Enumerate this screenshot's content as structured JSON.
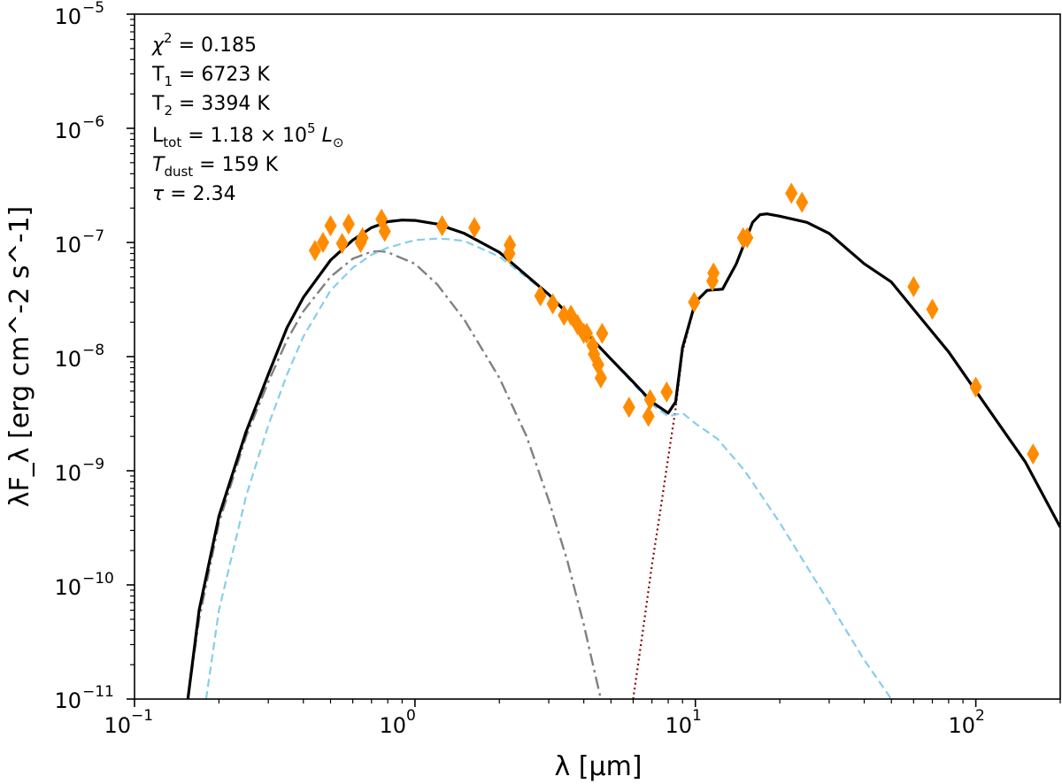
{
  "chart_data": {
    "type": "scatter",
    "title": "",
    "xlabel": "λ [μm]",
    "ylabel": "λF_λ [erg cm^-2 s^-1]",
    "xscale": "log",
    "yscale": "log",
    "xlim": [
      0.1,
      200
    ],
    "ylim": [
      1e-11,
      1e-05
    ],
    "grid": false,
    "x_ticks": [
      {
        "base": "10",
        "exp": "−1",
        "value": 0.1
      },
      {
        "base": "10",
        "exp": "0",
        "value": 1
      },
      {
        "base": "10",
        "exp": "1",
        "value": 10
      },
      {
        "base": "10",
        "exp": "2",
        "value": 100
      }
    ],
    "y_ticks": [
      {
        "base": "10",
        "exp": "−11",
        "value": 1e-11
      },
      {
        "base": "10",
        "exp": "−10",
        "value": 1e-10
      },
      {
        "base": "10",
        "exp": "−9",
        "value": 1e-09
      },
      {
        "base": "10",
        "exp": "−8",
        "value": 1e-08
      },
      {
        "base": "10",
        "exp": "−7",
        "value": 1e-07
      },
      {
        "base": "10",
        "exp": "−6",
        "value": 1e-06
      },
      {
        "base": "10",
        "exp": "−5",
        "value": 1e-05
      }
    ],
    "annotations": {
      "chi2": {
        "sym": "χ",
        "sup": "2",
        "rest": " = 0.185"
      },
      "t1": {
        "sym": "T",
        "sub": "1",
        "rest": " = 6723 K"
      },
      "t2": {
        "sym": "T",
        "sub": "2",
        "rest": " = 3394 K"
      },
      "ltot": {
        "sym": "L",
        "sub": "tot",
        "mid": " = 1.18 × 10",
        "sup": "5",
        "unit": " L",
        "unit_sub": "⊙"
      },
      "tdust": {
        "sym": "T",
        "sub": "dust",
        "rest": " = 159 K"
      },
      "tau": {
        "sym": "τ",
        "rest": " = 2.34"
      }
    },
    "series": [
      {
        "name": "observed photometry",
        "kind": "markers",
        "color": "#ff8c00",
        "marker": "thin-diamond",
        "points": [
          [
            0.44,
            8.5e-08
          ],
          [
            0.47,
            1e-07
          ],
          [
            0.5,
            1.4e-07
          ],
          [
            0.55,
            9.8e-08
          ],
          [
            0.58,
            1.45e-07
          ],
          [
            0.64,
            1e-07
          ],
          [
            0.65,
            1.1e-07
          ],
          [
            0.76,
            1.6e-07
          ],
          [
            0.78,
            1.25e-07
          ],
          [
            1.25,
            1.4e-07
          ],
          [
            1.63,
            1.35e-07
          ],
          [
            2.17,
            8e-08
          ],
          [
            2.18,
            9.5e-08
          ],
          [
            2.8,
            3.4e-08
          ],
          [
            3.1,
            2.9e-08
          ],
          [
            3.4,
            2.3e-08
          ],
          [
            3.6,
            2.3e-08
          ],
          [
            3.8,
            1.9e-08
          ],
          [
            4.0,
            1.6e-08
          ],
          [
            4.1,
            1.6e-08
          ],
          [
            4.3,
            1.25e-08
          ],
          [
            4.35,
            1.05e-08
          ],
          [
            4.5,
            8.5e-09
          ],
          [
            4.6,
            6.5e-09
          ],
          [
            4.65,
            1.6e-08
          ],
          [
            5.8,
            3.6e-09
          ],
          [
            6.8,
            3e-09
          ],
          [
            6.9,
            4.2e-09
          ],
          [
            7.9,
            4.9e-09
          ],
          [
            9.9,
            3e-08
          ],
          [
            11.5,
            4.6e-08
          ],
          [
            11.6,
            5.4e-08
          ],
          [
            14.8,
            1.1e-07
          ],
          [
            15.3,
            1.1e-07
          ],
          [
            22,
            2.7e-07
          ],
          [
            24,
            2.25e-07
          ],
          [
            60,
            4.1e-08
          ],
          [
            70,
            2.6e-08
          ],
          [
            100,
            5.4e-09
          ],
          [
            160,
            1.4e-09
          ]
        ]
      },
      {
        "name": "total model",
        "kind": "line",
        "color": "#000000",
        "style": "solid",
        "points": [
          [
            0.155,
            1e-11
          ],
          [
            0.17,
            6e-11
          ],
          [
            0.2,
            4e-10
          ],
          [
            0.25,
            2.2e-09
          ],
          [
            0.3,
            7e-09
          ],
          [
            0.35,
            1.8e-08
          ],
          [
            0.4,
            3.3e-08
          ],
          [
            0.5,
            7e-08
          ],
          [
            0.6,
            1.05e-07
          ],
          [
            0.7,
            1.35e-07
          ],
          [
            0.8,
            1.52e-07
          ],
          [
            0.9,
            1.57e-07
          ],
          [
            1.0,
            1.56e-07
          ],
          [
            1.2,
            1.45e-07
          ],
          [
            1.5,
            1.2e-07
          ],
          [
            2.0,
            8.2e-08
          ],
          [
            3.0,
            3.5e-08
          ],
          [
            4.0,
            1.7e-08
          ],
          [
            5.0,
            9.5e-09
          ],
          [
            6.0,
            6e-09
          ],
          [
            7.0,
            4e-09
          ],
          [
            8.0,
            3.2e-09
          ],
          [
            8.5,
            4e-09
          ],
          [
            9.0,
            1.2e-08
          ],
          [
            10,
            3e-08
          ],
          [
            11,
            3.8e-08
          ],
          [
            12.5,
            3.9e-08
          ],
          [
            14,
            6.5e-08
          ],
          [
            15,
            1e-07
          ],
          [
            16,
            1.5e-07
          ],
          [
            17,
            1.75e-07
          ],
          [
            18,
            1.78e-07
          ],
          [
            20,
            1.7e-07
          ],
          [
            25,
            1.5e-07
          ],
          [
            30,
            1.2e-07
          ],
          [
            40,
            6.5e-08
          ],
          [
            50,
            4.5e-08
          ],
          [
            60,
            2.6e-08
          ],
          [
            80,
            1.1e-08
          ],
          [
            100,
            5e-09
          ],
          [
            150,
            1.2e-09
          ],
          [
            200,
            3.2e-10
          ]
        ]
      },
      {
        "name": "hot photosphere (T1)",
        "kind": "line",
        "color": "#87ceeb",
        "style": "dashed",
        "points": [
          [
            0.18,
            1e-11
          ],
          [
            0.2,
            6e-11
          ],
          [
            0.25,
            6e-10
          ],
          [
            0.3,
            2.5e-09
          ],
          [
            0.35,
            7e-09
          ],
          [
            0.4,
            1.5e-08
          ],
          [
            0.5,
            3.8e-08
          ],
          [
            0.6,
            6e-08
          ],
          [
            0.7,
            7.8e-08
          ],
          [
            0.8,
            9e-08
          ],
          [
            1.0,
            1.05e-07
          ],
          [
            1.2,
            1.08e-07
          ],
          [
            1.3,
            1.07e-07
          ],
          [
            1.5,
            1.03e-07
          ],
          [
            2.0,
            7.5e-08
          ],
          [
            3.0,
            3.5e-08
          ],
          [
            4.0,
            1.7e-08
          ],
          [
            5.0,
            9.5e-09
          ],
          [
            6.0,
            5.8e-09
          ],
          [
            7.0,
            3.8e-09
          ],
          [
            8.0,
            3e-09
          ],
          [
            9.0,
            3.2e-09
          ],
          [
            10,
            2.6e-09
          ],
          [
            12,
            1.9e-09
          ],
          [
            15,
            1e-09
          ],
          [
            20,
            3.5e-10
          ],
          [
            30,
            7e-11
          ],
          [
            40,
            2.2e-11
          ],
          [
            50,
            1e-11
          ]
        ]
      },
      {
        "name": "cool photosphere (T2)",
        "kind": "line",
        "color": "#808080",
        "style": "dashdot",
        "points": [
          [
            0.155,
            1e-11
          ],
          [
            0.17,
            5e-11
          ],
          [
            0.2,
            3.5e-10
          ],
          [
            0.25,
            2e-09
          ],
          [
            0.3,
            6e-09
          ],
          [
            0.35,
            1.4e-08
          ],
          [
            0.4,
            2.5e-08
          ],
          [
            0.5,
            5e-08
          ],
          [
            0.6,
            7.2e-08
          ],
          [
            0.7,
            8.3e-08
          ],
          [
            0.75,
            8.4e-08
          ],
          [
            0.8,
            8.2e-08
          ],
          [
            1.0,
            6.5e-08
          ],
          [
            1.2,
            4.3e-08
          ],
          [
            1.5,
            2.1e-08
          ],
          [
            2.0,
            6.5e-09
          ],
          [
            2.5,
            2e-09
          ],
          [
            3.0,
            5.5e-10
          ],
          [
            3.5,
            1.6e-10
          ],
          [
            4.0,
            4.5e-11
          ],
          [
            4.6,
            1e-11
          ]
        ]
      },
      {
        "name": "dust emission",
        "kind": "line",
        "color": "#8b0000",
        "style": "dotted",
        "points": [
          [
            6.0,
            1e-11
          ],
          [
            6.5,
            4e-11
          ],
          [
            7.0,
            1.5e-10
          ],
          [
            7.5,
            4.5e-10
          ],
          [
            8.0,
            1.3e-09
          ],
          [
            8.5,
            3.5e-09
          ],
          [
            9.0,
            1.1e-08
          ],
          [
            10,
            3e-08
          ],
          [
            11,
            3.8e-08
          ],
          [
            12.5,
            3.9e-08
          ],
          [
            14,
            6.5e-08
          ],
          [
            15,
            1e-07
          ],
          [
            16,
            1.5e-07
          ],
          [
            17,
            1.75e-07
          ],
          [
            18,
            1.78e-07
          ],
          [
            20,
            1.7e-07
          ],
          [
            25,
            1.5e-07
          ],
          [
            30,
            1.2e-07
          ],
          [
            40,
            6.5e-08
          ],
          [
            50,
            4.5e-08
          ],
          [
            60,
            2.6e-08
          ],
          [
            80,
            1.1e-08
          ],
          [
            100,
            5e-09
          ],
          [
            150,
            1.2e-09
          ],
          [
            200,
            3.2e-10
          ]
        ]
      }
    ]
  }
}
